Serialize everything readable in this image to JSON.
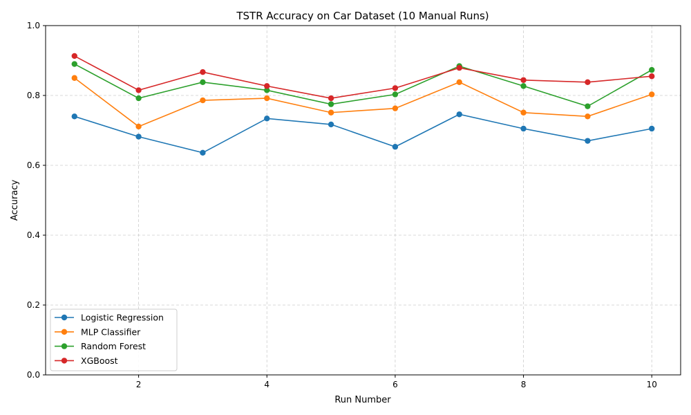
{
  "chart_data": {
    "type": "line",
    "title": "TSTR Accuracy on Car Dataset (10 Manual Runs)",
    "xlabel": "Run Number",
    "ylabel": "Accuracy",
    "x": [
      1,
      2,
      3,
      4,
      5,
      6,
      7,
      8,
      9,
      10
    ],
    "xlim": [
      0.55,
      10.45
    ],
    "ylim": [
      0.0,
      1.0
    ],
    "xticks": [
      2,
      4,
      6,
      8,
      10
    ],
    "yticks": [
      0.0,
      0.2,
      0.4,
      0.6,
      0.8,
      1.0
    ],
    "ytick_labels": [
      "0.0",
      "0.2",
      "0.4",
      "0.6",
      "0.8",
      "1.0"
    ],
    "grid": true,
    "legend_position": "lower-left",
    "series": [
      {
        "name": "Logistic Regression",
        "color": "#1f77b4",
        "values": [
          0.74,
          0.682,
          0.636,
          0.734,
          0.717,
          0.653,
          0.746,
          0.705,
          0.67,
          0.705
        ]
      },
      {
        "name": "MLP Classifier",
        "color": "#ff7f0e",
        "values": [
          0.85,
          0.711,
          0.786,
          0.792,
          0.751,
          0.763,
          0.838,
          0.751,
          0.74,
          0.803
        ]
      },
      {
        "name": "Random Forest",
        "color": "#2ca02c",
        "values": [
          0.89,
          0.792,
          0.838,
          0.815,
          0.775,
          0.803,
          0.884,
          0.827,
          0.769,
          0.873
        ]
      },
      {
        "name": "XGBoost",
        "color": "#d62728",
        "values": [
          0.913,
          0.815,
          0.867,
          0.827,
          0.792,
          0.821,
          0.879,
          0.844,
          0.838,
          0.855
        ]
      }
    ]
  }
}
